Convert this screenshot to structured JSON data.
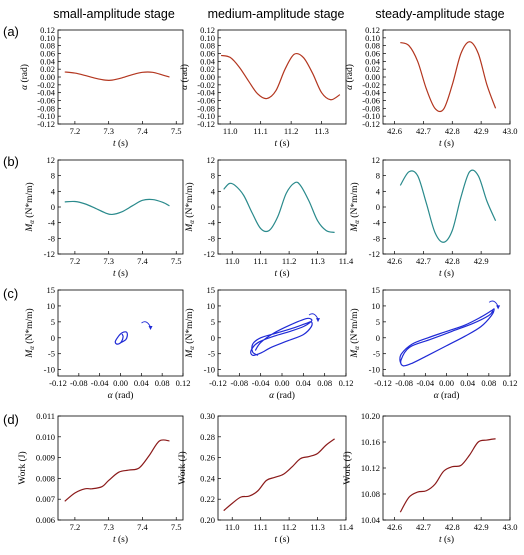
{
  "figure": {
    "column_titles": [
      "small-amplitude stage",
      "medium-amplitude stage",
      "steady-amplitude stage"
    ],
    "row_labels": [
      "(a)",
      "(b)",
      "(c)",
      "(d)"
    ]
  },
  "colors": {
    "alpha": "#b3361f",
    "moment": "#2a8a8c",
    "phase": "#1f2ad6",
    "work": "#8b1a1a"
  },
  "chart_data": [
    {
      "id": "a1",
      "type": "line",
      "xlabel": "t (s)",
      "ylabel": "α (rad)",
      "xlim": [
        7.15,
        7.52
      ],
      "ylim": [
        -0.12,
        0.12
      ],
      "xticks": [
        "7.2",
        "7.3",
        "7.4",
        "7.5"
      ],
      "yticks": [
        "-0.12",
        "-0.10",
        "-0.08",
        "-0.06",
        "-0.04",
        "-0.02",
        "0.00",
        "0.02",
        "0.04",
        "0.06",
        "0.08",
        "0.10",
        "0.12"
      ],
      "series": [
        {
          "x": [
            7.17,
            7.2,
            7.23,
            7.26,
            7.29,
            7.31,
            7.34,
            7.37,
            7.4,
            7.43,
            7.46,
            7.48
          ],
          "y": [
            0.013,
            0.01,
            0.004,
            -0.003,
            -0.008,
            -0.008,
            -0.002,
            0.006,
            0.012,
            0.012,
            0.005,
            0.0
          ]
        }
      ]
    },
    {
      "id": "a2",
      "type": "line",
      "xlabel": "t (s)",
      "ylabel": "α (rad)",
      "xlim": [
        10.96,
        11.38
      ],
      "ylim": [
        -0.12,
        0.12
      ],
      "xticks": [
        "11.0",
        "11.1",
        "11.2",
        "11.3"
      ],
      "yticks": [
        "-0.12",
        "-0.10",
        "-0.08",
        "-0.06",
        "-0.04",
        "-0.02",
        "0.00",
        "0.02",
        "0.04",
        "0.06",
        "0.08",
        "0.10",
        "0.12"
      ],
      "series": [
        {
          "x": [
            10.97,
            11.0,
            11.03,
            11.06,
            11.09,
            11.12,
            11.15,
            11.18,
            11.21,
            11.24,
            11.27,
            11.3,
            11.33,
            11.36
          ],
          "y": [
            0.055,
            0.05,
            0.025,
            -0.01,
            -0.043,
            -0.055,
            -0.035,
            0.02,
            0.058,
            0.05,
            0.01,
            -0.04,
            -0.058,
            -0.045
          ]
        }
      ]
    },
    {
      "id": "a3",
      "type": "line",
      "xlabel": "t (s)",
      "ylabel": "α (rad)",
      "xlim": [
        42.56,
        43.0
      ],
      "ylim": [
        -0.12,
        0.12
      ],
      "xticks": [
        "42.6",
        "42.7",
        "42.8",
        "42.9",
        "43.0"
      ],
      "yticks": [
        "-0.12",
        "-0.10",
        "-0.08",
        "-0.06",
        "-0.04",
        "-0.02",
        "0.00",
        "0.02",
        "0.04",
        "0.06",
        "0.08",
        "0.10",
        "0.12"
      ],
      "series": [
        {
          "x": [
            42.62,
            42.65,
            42.68,
            42.71,
            42.74,
            42.77,
            42.8,
            42.83,
            42.86,
            42.89,
            42.92,
            42.95
          ],
          "y": [
            0.088,
            0.08,
            0.04,
            -0.03,
            -0.08,
            -0.082,
            -0.02,
            0.06,
            0.09,
            0.06,
            -0.02,
            -0.08
          ]
        }
      ]
    },
    {
      "id": "b1",
      "type": "line",
      "xlabel": "t (s)",
      "ylabel": "Mα (N*m/m)",
      "xlim": [
        7.15,
        7.52
      ],
      "ylim": [
        -12,
        12
      ],
      "xticks": [
        "7.2",
        "7.3",
        "7.4",
        "7.5"
      ],
      "yticks": [
        "-12",
        "-8",
        "-4",
        "0",
        "4",
        "8",
        "12"
      ],
      "series": [
        {
          "x": [
            7.17,
            7.2,
            7.23,
            7.26,
            7.29,
            7.31,
            7.34,
            7.37,
            7.4,
            7.43,
            7.46,
            7.48
          ],
          "y": [
            1.3,
            1.4,
            0.8,
            -0.3,
            -1.5,
            -1.9,
            -1.2,
            0.3,
            1.7,
            1.9,
            1.2,
            0.3
          ]
        }
      ]
    },
    {
      "id": "b2",
      "type": "line",
      "xlabel": "t (s)",
      "ylabel": "Mα (N*m/m)",
      "xlim": [
        10.95,
        11.4
      ],
      "ylim": [
        -12,
        12
      ],
      "xticks": [
        "11.0",
        "11.1",
        "11.2",
        "11.3",
        "11.4"
      ],
      "yticks": [
        "-12",
        "-8",
        "-4",
        "0",
        "4",
        "8",
        "12"
      ],
      "series": [
        {
          "x": [
            10.97,
            10.99,
            11.01,
            11.04,
            11.07,
            11.1,
            11.13,
            11.16,
            11.19,
            11.22,
            11.24,
            11.27,
            11.3,
            11.33,
            11.36
          ],
          "y": [
            4.5,
            6.0,
            5.5,
            3.0,
            -1.5,
            -5.5,
            -6.0,
            -2.5,
            3.5,
            6.2,
            5.5,
            1.5,
            -3.5,
            -6.0,
            -6.5
          ]
        }
      ]
    },
    {
      "id": "b3",
      "type": "line",
      "xlabel": "t (s)",
      "ylabel": "Mα (N*m/m)",
      "xlim": [
        42.56,
        43.0
      ],
      "ylim": [
        -12,
        12
      ],
      "xticks": [
        "42.6",
        "42.7",
        "42.8",
        "42.9"
      ],
      "yticks": [
        "-12",
        "-8",
        "-4",
        "0",
        "4",
        "8",
        "12"
      ],
      "series": [
        {
          "x": [
            42.62,
            42.65,
            42.68,
            42.71,
            42.74,
            42.77,
            42.8,
            42.83,
            42.86,
            42.89,
            42.92,
            42.95
          ],
          "y": [
            5.5,
            9.0,
            8.0,
            1.0,
            -6.5,
            -9.0,
            -6.0,
            2.5,
            9.0,
            8.0,
            1.5,
            -3.5
          ]
        }
      ]
    },
    {
      "id": "c1",
      "type": "line",
      "xlabel": "α (rad)",
      "ylabel": "Mα (N*m/m)",
      "xlim": [
        -0.12,
        0.12
      ],
      "ylim": [
        -12,
        15
      ],
      "xticks": [
        "-0.12",
        "-0.08",
        "-0.04",
        "0.00",
        "0.04",
        "0.08",
        "0.12"
      ],
      "yticks": [
        "-10",
        "-5",
        "0",
        "5",
        "10",
        "15"
      ],
      "series": [
        {
          "x": [
            0.0,
            0.01,
            0.013,
            0.012,
            0.006,
            0.0,
            -0.006,
            -0.01,
            -0.008,
            -0.003,
            0.002,
            0.005,
            0.003
          ],
          "y": [
            -1.6,
            -0.6,
            0.6,
            1.7,
            1.8,
            1.2,
            0.0,
            -1.2,
            -1.9,
            -1.9,
            -1.2,
            0.3,
            1.2
          ]
        }
      ],
      "arrow": {
        "x": 0.05,
        "y": 4.0
      }
    },
    {
      "id": "c2",
      "type": "line",
      "xlabel": "α (rad)",
      "ylabel": "Mα (N*m/m)",
      "xlim": [
        -0.12,
        0.12
      ],
      "ylim": [
        -12,
        15
      ],
      "xticks": [
        "-0.12",
        "-0.08",
        "-0.04",
        "0.00",
        "0.04",
        "0.08",
        "0.12"
      ],
      "yticks": [
        "-10",
        "-5",
        "0",
        "5",
        "10",
        "15"
      ],
      "series": [
        {
          "x": [
            -0.045,
            -0.055,
            -0.055,
            -0.04,
            -0.01,
            0.02,
            0.045,
            0.055,
            0.055,
            0.04,
            0.01,
            -0.02,
            -0.04,
            -0.055,
            -0.058,
            -0.045,
            -0.015,
            0.015,
            0.04,
            0.054,
            0.055,
            0.045,
            0.015,
            -0.015,
            -0.04,
            -0.05
          ],
          "y": [
            -5.5,
            -4.5,
            -2.0,
            0.0,
            1.5,
            3.0,
            4.5,
            5.0,
            3.5,
            1.0,
            -1.0,
            -3.0,
            -4.8,
            -5.5,
            -4.0,
            -1.5,
            0.5,
            2.0,
            3.5,
            5.0,
            5.8,
            6.0,
            4.0,
            1.5,
            -1.5,
            -4.0
          ]
        }
      ],
      "arrow": {
        "x": 0.06,
        "y": 6.5
      }
    },
    {
      "id": "c3",
      "type": "line",
      "xlabel": "α (rad)",
      "ylabel": "Mα (N*m/m)",
      "xlim": [
        -0.12,
        0.12
      ],
      "ylim": [
        -12,
        15
      ],
      "xticks": [
        "-0.12",
        "-0.08",
        "-0.04",
        "0.00",
        "0.04",
        "0.08",
        "0.12"
      ],
      "yticks": [
        "-10",
        "-5",
        "0",
        "5",
        "10",
        "15"
      ],
      "series": [
        {
          "x": [
            -0.085,
            -0.088,
            -0.085,
            -0.065,
            -0.035,
            0.0,
            0.035,
            0.065,
            0.085,
            0.09,
            0.085,
            0.065,
            0.035,
            0.0,
            -0.035,
            -0.065,
            -0.082,
            -0.086,
            -0.07,
            -0.03,
            0.01,
            0.05,
            0.08,
            0.088
          ],
          "y": [
            -8.5,
            -7.0,
            -5.0,
            -2.0,
            0.0,
            2.0,
            4.0,
            6.5,
            8.5,
            9.0,
            7.0,
            3.5,
            0.5,
            -2.5,
            -5.5,
            -8.0,
            -8.8,
            -7.0,
            -3.0,
            -0.5,
            2.0,
            4.5,
            7.0,
            8.5
          ]
        }
      ],
      "arrow": {
        "x": 0.09,
        "y": 10.5
      }
    },
    {
      "id": "d1",
      "type": "line",
      "xlabel": "t (s)",
      "ylabel": "Work (J)",
      "xlim": [
        7.15,
        7.52
      ],
      "ylim": [
        0.006,
        0.011
      ],
      "xticks": [
        "7.2",
        "7.3",
        "7.4",
        "7.5"
      ],
      "yticks": [
        "0.006",
        "0.007",
        "0.008",
        "0.009",
        "0.010",
        "0.011"
      ],
      "series": [
        {
          "x": [
            7.17,
            7.2,
            7.23,
            7.25,
            7.28,
            7.3,
            7.33,
            7.36,
            7.39,
            7.42,
            7.45,
            7.48
          ],
          "y": [
            0.0069,
            0.0073,
            0.0075,
            0.0075,
            0.0076,
            0.0079,
            0.0083,
            0.0084,
            0.0085,
            0.0091,
            0.0098,
            0.0098
          ]
        }
      ]
    },
    {
      "id": "d2",
      "type": "line",
      "xlabel": "t (s)",
      "ylabel": "Work (J)",
      "xlim": [
        10.95,
        11.4
      ],
      "ylim": [
        0.2,
        0.3
      ],
      "xticks": [
        "11.0",
        "11.1",
        "11.2",
        "11.3",
        "11.4"
      ],
      "yticks": [
        "0.20",
        "0.22",
        "0.24",
        "0.26",
        "0.28",
        "0.30"
      ],
      "series": [
        {
          "x": [
            10.97,
            11.0,
            11.03,
            11.06,
            11.09,
            11.12,
            11.15,
            11.18,
            11.21,
            11.24,
            11.27,
            11.3,
            11.33,
            11.36
          ],
          "y": [
            0.209,
            0.216,
            0.222,
            0.223,
            0.228,
            0.238,
            0.241,
            0.244,
            0.251,
            0.259,
            0.261,
            0.264,
            0.272,
            0.278
          ]
        }
      ]
    },
    {
      "id": "d3",
      "type": "line",
      "xlabel": "t (s)",
      "ylabel": "Work (J)",
      "xlim": [
        42.56,
        43.0
      ],
      "ylim": [
        10.04,
        10.2
      ],
      "xticks": [
        "42.6",
        "42.7",
        "42.8",
        "42.9",
        "43.0"
      ],
      "yticks": [
        "10.04",
        "10.08",
        "10.12",
        "10.16",
        "10.20"
      ],
      "series": [
        {
          "x": [
            42.62,
            42.65,
            42.68,
            42.71,
            42.74,
            42.77,
            42.8,
            42.83,
            42.86,
            42.89,
            42.92,
            42.95
          ],
          "y": [
            10.052,
            10.075,
            10.083,
            10.085,
            10.095,
            10.115,
            10.122,
            10.124,
            10.14,
            10.16,
            10.163,
            10.165
          ]
        }
      ]
    }
  ]
}
